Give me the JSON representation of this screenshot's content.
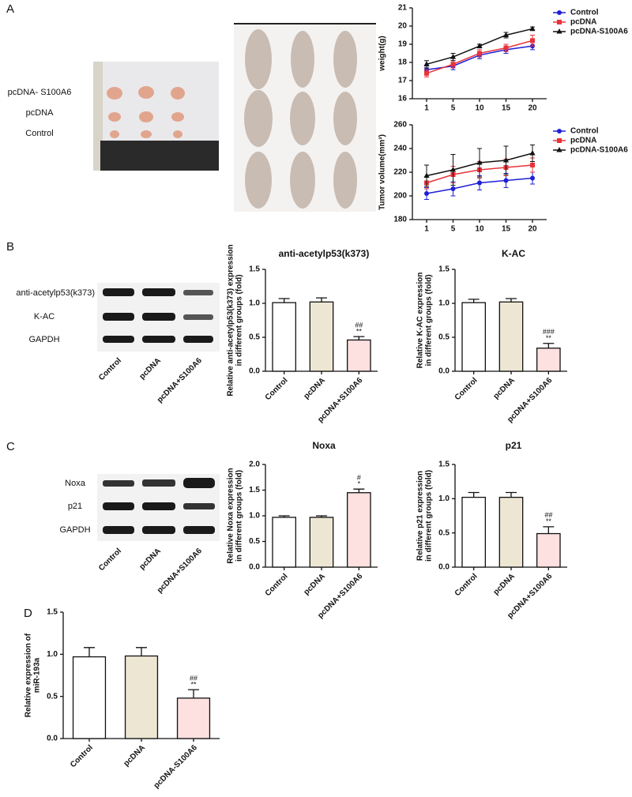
{
  "panels": [
    "A",
    "B",
    "C",
    "D"
  ],
  "photo_labels": [
    "pcDNA- S100A6",
    "pcDNA",
    "Control"
  ],
  "blot_b": {
    "rows": [
      "anti-acetylp53(k373)",
      "K-AC",
      "GAPDH"
    ],
    "lanes": [
      "Control",
      "pcDNA",
      "pcDNA+S100A6"
    ]
  },
  "blot_c": {
    "rows": [
      "Noxa",
      "p21",
      "GAPDH"
    ],
    "lanes": [
      "Control",
      "pcDNA",
      "pcDNA+S100A6"
    ]
  },
  "chart_data": [
    {
      "type": "line",
      "ylabel": [
        "weight(g)"
      ],
      "categories": [
        "1",
        "5",
        "10",
        "15",
        "20"
      ],
      "ylim": [
        16,
        21
      ],
      "yticks": [
        16,
        17,
        18,
        19,
        20,
        21
      ],
      "series": [
        {
          "name": "Control",
          "color": "#1f1fd6",
          "marker": "circle",
          "values": [
            17.6,
            17.8,
            18.4,
            18.7,
            18.9
          ],
          "errors": [
            0.2,
            0.2,
            0.2,
            0.2,
            0.2
          ]
        },
        {
          "name": "pcDNA",
          "color": "#e8333a",
          "marker": "square",
          "values": [
            17.4,
            17.9,
            18.5,
            18.8,
            19.2
          ],
          "errors": [
            0.2,
            0.2,
            0.2,
            0.2,
            0.3
          ]
        },
        {
          "name": "pcDNA-S100A6",
          "color": "#111111",
          "marker": "triangle",
          "values": [
            17.9,
            18.3,
            18.9,
            19.5,
            19.85
          ],
          "errors": [
            0.2,
            0.2,
            0.1,
            0.15,
            0.1
          ]
        }
      ]
    },
    {
      "type": "line",
      "ylabel": [
        "Tumor volume(mm³)"
      ],
      "categories": [
        "1",
        "5",
        "10",
        "15",
        "20"
      ],
      "ylim": [
        180,
        260
      ],
      "yticks": [
        180,
        200,
        220,
        240,
        260
      ],
      "series": [
        {
          "name": "Control",
          "color": "#1f1fd6",
          "marker": "circle",
          "values": [
            202,
            206,
            211,
            213,
            215
          ],
          "errors": [
            5,
            6,
            6,
            6,
            5
          ]
        },
        {
          "name": "pcDNA",
          "color": "#e8333a",
          "marker": "square",
          "values": [
            211,
            218,
            222,
            224,
            226
          ],
          "errors": [
            5,
            7,
            7,
            7,
            6
          ]
        },
        {
          "name": "pcDNA-S100A6",
          "color": "#111111",
          "marker": "triangle",
          "values": [
            217,
            222,
            228,
            230,
            236
          ],
          "errors": [
            9,
            13,
            12,
            12,
            7
          ]
        }
      ]
    },
    {
      "type": "bar",
      "title": "anti-acetylp53(k373)",
      "ylabel": [
        "Relative anti-acetylp53(k373) expression",
        "in different groups (fold)"
      ],
      "categories": [
        "Control",
        "pcDNA",
        "pcDNA+S100A6"
      ],
      "values": [
        1.01,
        1.02,
        0.46
      ],
      "errors": [
        0.06,
        0.06,
        0.05
      ],
      "colors": [
        "#ffffff",
        "#ece6d3",
        "#fde0e0"
      ],
      "annotations": [
        "##",
        "**"
      ],
      "ylim": [
        0,
        1.5
      ],
      "yticks": [
        {
          "value": 0,
          "label": "0.0"
        },
        0.5,
        {
          "value": 1,
          "label": "1.0"
        },
        1.5
      ]
    },
    {
      "type": "bar",
      "title": "K-AC",
      "ylabel": [
        "Relative K-AC expression",
        "in different groups (fold)"
      ],
      "categories": [
        "Control",
        "pcDNA",
        "pcDNA+S100A6"
      ],
      "values": [
        1.01,
        1.02,
        0.34
      ],
      "errors": [
        0.05,
        0.05,
        0.07
      ],
      "colors": [
        "#ffffff",
        "#ece6d3",
        "#fde0e0"
      ],
      "annotations": [
        "###",
        "**"
      ],
      "ylim": [
        0,
        1.5
      ],
      "yticks": [
        {
          "value": 0,
          "label": "0.0"
        },
        0.5,
        {
          "value": 1,
          "label": "1.0"
        },
        1.5
      ]
    },
    {
      "type": "bar",
      "title": "Noxa",
      "ylabel": [
        "Relative Noxa expression",
        "in different groups (fold)"
      ],
      "categories": [
        "Control",
        "pcDNA",
        "pcDNA+S100A6"
      ],
      "values": [
        0.97,
        0.97,
        1.45
      ],
      "errors": [
        0.03,
        0.03,
        0.07
      ],
      "colors": [
        "#ffffff",
        "#ece6d3",
        "#fde0e0"
      ],
      "annotations": [
        "#",
        "*"
      ],
      "ylim": [
        0,
        2
      ],
      "yticks": [
        {
          "value": 0,
          "label": "0.0"
        },
        0.5,
        {
          "value": 1,
          "label": "1.0"
        },
        1.5,
        {
          "value": 2,
          "label": "2.0"
        }
      ]
    },
    {
      "type": "bar",
      "title": "p21",
      "ylabel": [
        "Relative p21 expression",
        "in different groups (fold)"
      ],
      "categories": [
        "Control",
        "pcDNA",
        "pcDNA+S100A6"
      ],
      "values": [
        1.02,
        1.02,
        0.49
      ],
      "errors": [
        0.07,
        0.07,
        0.1
      ],
      "colors": [
        "#ffffff",
        "#ece6d3",
        "#fde0e0"
      ],
      "annotations": [
        "##",
        "**"
      ],
      "ylim": [
        0,
        1.5
      ],
      "yticks": [
        {
          "value": 0,
          "label": "0.0"
        },
        0.5,
        {
          "value": 1,
          "label": "1.0"
        },
        1.5
      ]
    },
    {
      "type": "bar",
      "ylabel": [
        "Relative expression of",
        "miR-193a"
      ],
      "categories": [
        "Control",
        "pcDNA",
        "pcDNA-S100A6"
      ],
      "values": [
        0.97,
        0.98,
        0.48
      ],
      "errors": [
        0.11,
        0.1,
        0.1
      ],
      "colors": [
        "#ffffff",
        "#ece6d3",
        "#fde0e0"
      ],
      "annotations": [
        "##",
        "**"
      ],
      "ylim": [
        0,
        1.5
      ],
      "yticks": [
        {
          "value": 0,
          "label": "0.0"
        },
        0.5,
        {
          "value": 1,
          "label": "1.0"
        },
        1.5
      ]
    }
  ]
}
